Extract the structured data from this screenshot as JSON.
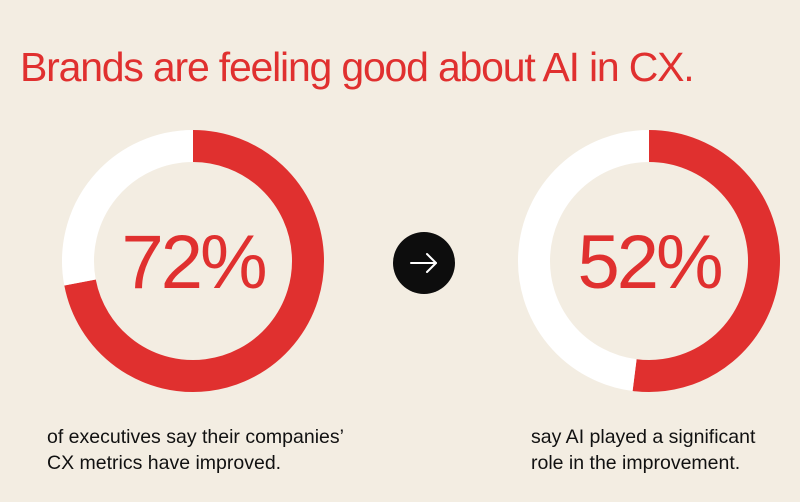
{
  "headline": "Brands are feeling good about AI in CX.",
  "colors": {
    "background": "#f3ede2",
    "accent": "#e0302f",
    "track": "#ffffff",
    "arrow_bg": "#0d0d0d",
    "text": "#111111"
  },
  "arrow_icon": "arrow-right-icon",
  "chart_data": [
    {
      "type": "pie",
      "variant": "donut",
      "value_label": "72%",
      "values": [
        72,
        28
      ],
      "colors": [
        "#e0302f",
        "#ffffff"
      ],
      "caption": [
        "of executives say their companies’",
        "CX metrics have improved."
      ]
    },
    {
      "type": "pie",
      "variant": "donut",
      "value_label": "52%",
      "values": [
        52,
        48
      ],
      "colors": [
        "#e0302f",
        "#ffffff"
      ],
      "caption": [
        "say AI played a significant",
        "role in the improvement."
      ]
    }
  ]
}
